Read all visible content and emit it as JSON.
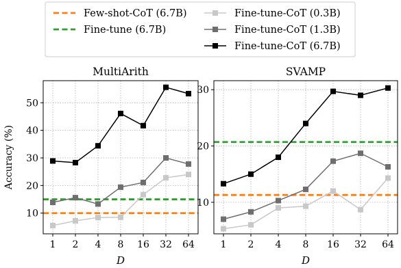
{
  "legend": {
    "entries": [
      {
        "label": "Few-shot-CoT (6.7B)",
        "style": "dashed",
        "color": "#ff7f0e",
        "marker": "none"
      },
      {
        "label": "Fine-tune (6.7B)",
        "style": "dashed",
        "color": "#2ca02c",
        "marker": "none"
      },
      {
        "label": "Fine-tune-CoT (0.3B)",
        "style": "solid",
        "color": "#c8c8c8",
        "marker": "square"
      },
      {
        "label": "Fine-tune-CoT (1.3B)",
        "style": "solid",
        "color": "#6e6e6e",
        "marker": "square"
      },
      {
        "label": "Fine-tune-CoT (6.7B)",
        "style": "solid",
        "color": "#000000",
        "marker": "square"
      }
    ]
  },
  "chart_data": [
    {
      "type": "line",
      "title": "MultiArith",
      "xlabel": "D",
      "ylabel": "Accuracy (%)",
      "categories": [
        "1",
        "2",
        "4",
        "8",
        "16",
        "32",
        "64"
      ],
      "ylim": [
        2.5,
        58
      ],
      "yticks": [
        10,
        20,
        30,
        40,
        50
      ],
      "grid": true,
      "hlines": [
        {
          "name": "Few-shot-CoT (6.7B)",
          "value": 10,
          "color": "#ff7f0e"
        },
        {
          "name": "Fine-tune (6.7B)",
          "value": 15,
          "color": "#2ca02c"
        }
      ],
      "series": [
        {
          "name": "Fine-tune-CoT (0.3B)",
          "color": "#c8c8c8",
          "values": [
            5.5,
            7.2,
            8.4,
            8.5,
            16.7,
            22.8,
            24.0
          ]
        },
        {
          "name": "Fine-tune-CoT (1.3B)",
          "color": "#6e6e6e",
          "values": [
            13.9,
            15.6,
            13.3,
            19.4,
            21.1,
            30.0,
            27.8
          ]
        },
        {
          "name": "Fine-tune-CoT (6.7B)",
          "color": "#000000",
          "values": [
            28.9,
            28.3,
            34.4,
            46.1,
            41.7,
            55.6,
            53.3
          ]
        }
      ]
    },
    {
      "type": "line",
      "title": "SVAMP",
      "xlabel": "D",
      "ylabel": "",
      "categories": [
        "1",
        "2",
        "4",
        "8",
        "16",
        "32",
        "64"
      ],
      "ylim": [
        4.4,
        31.6
      ],
      "yticks": [
        10,
        20,
        30
      ],
      "grid": true,
      "hlines": [
        {
          "name": "Few-shot-CoT (6.7B)",
          "value": 11.3,
          "color": "#ff7f0e"
        },
        {
          "name": "Fine-tune (6.7B)",
          "value": 20.7,
          "color": "#2ca02c"
        }
      ],
      "series": [
        {
          "name": "Fine-tune-CoT (0.3B)",
          "color": "#c8c8c8",
          "values": [
            5.3,
            6.0,
            9.0,
            9.3,
            12.0,
            8.7,
            14.3
          ]
        },
        {
          "name": "Fine-tune-CoT (1.3B)",
          "color": "#6e6e6e",
          "values": [
            7.0,
            8.3,
            10.3,
            12.3,
            17.3,
            18.7,
            16.3
          ]
        },
        {
          "name": "Fine-tune-CoT (6.7B)",
          "color": "#000000",
          "values": [
            13.3,
            15.0,
            18.0,
            24.0,
            29.7,
            29.0,
            30.3
          ]
        }
      ]
    }
  ]
}
